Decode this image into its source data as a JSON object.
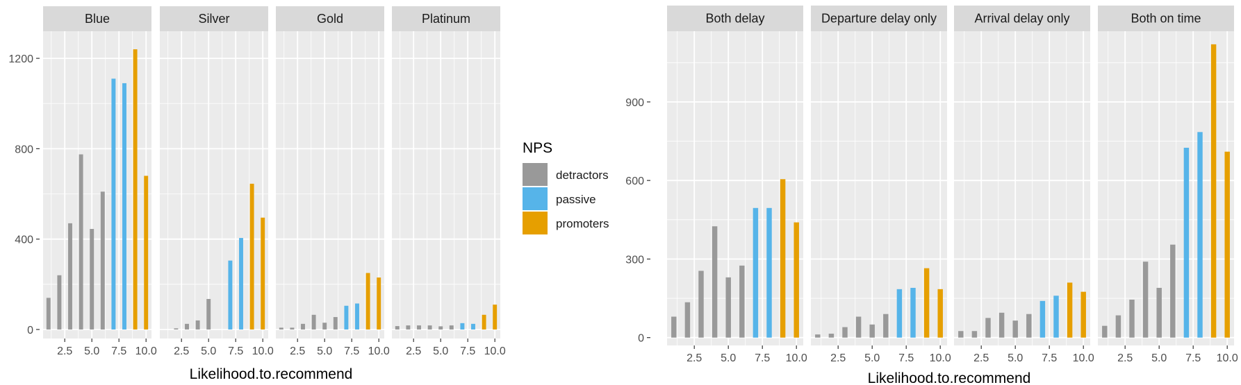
{
  "chart_data": [
    {
      "type": "bar",
      "facet_by": "Airline.Status",
      "xlabel": "Likelihood.to.recommend",
      "ylabel": "",
      "xlim": [
        0.5,
        10.5
      ],
      "x_ticks": [
        2.5,
        5.0,
        7.5,
        10.0
      ],
      "x_tick_labels": [
        "2.5",
        "5.0",
        "7.5",
        "10.0"
      ],
      "ylim": [
        -40,
        1320
      ],
      "y_ticks": [
        0,
        400,
        800,
        1200
      ],
      "y_tick_labels": [
        "0",
        "400",
        "800",
        "1200"
      ],
      "x": [
        1,
        2,
        3,
        4,
        5,
        6,
        7,
        8,
        9,
        10
      ],
      "fill_group": [
        "detractors",
        "detractors",
        "detractors",
        "detractors",
        "detractors",
        "detractors",
        "passive",
        "passive",
        "promoters",
        "promoters"
      ],
      "panels": [
        {
          "label": "Blue",
          "values": [
            140,
            240,
            470,
            775,
            445,
            610,
            1110,
            1090,
            1240,
            680
          ]
        },
        {
          "label": "Silver",
          "values": [
            0,
            5,
            25,
            40,
            135,
            0,
            305,
            405,
            645,
            495
          ]
        },
        {
          "label": "Gold",
          "values": [
            8,
            8,
            25,
            65,
            30,
            55,
            105,
            115,
            250,
            230
          ]
        },
        {
          "label": "Platinum",
          "values": [
            15,
            18,
            18,
            18,
            14,
            18,
            28,
            25,
            65,
            110
          ]
        }
      ]
    },
    {
      "type": "bar",
      "facet_by": "delay",
      "xlabel": "Likelihood.to.recommend",
      "ylabel": "",
      "xlim": [
        0.5,
        10.5
      ],
      "x_ticks": [
        2.5,
        5.0,
        7.5,
        10.0
      ],
      "x_tick_labels": [
        "2.5",
        "5.0",
        "7.5",
        "10.0"
      ],
      "ylim": [
        -30,
        1170
      ],
      "y_ticks": [
        0,
        300,
        600,
        900
      ],
      "y_tick_labels": [
        "0",
        "300",
        "600",
        "900"
      ],
      "x": [
        1,
        2,
        3,
        4,
        5,
        6,
        7,
        8,
        9,
        10
      ],
      "fill_group": [
        "detractors",
        "detractors",
        "detractors",
        "detractors",
        "detractors",
        "detractors",
        "passive",
        "passive",
        "promoters",
        "promoters"
      ],
      "panels": [
        {
          "label": "Both delay",
          "values": [
            80,
            135,
            255,
            425,
            230,
            275,
            495,
            495,
            605,
            440
          ]
        },
        {
          "label": "Departure delay only",
          "values": [
            12,
            15,
            40,
            80,
            50,
            90,
            185,
            190,
            265,
            185
          ]
        },
        {
          "label": "Arrival delay only",
          "values": [
            25,
            25,
            75,
            95,
            65,
            90,
            140,
            160,
            210,
            175
          ]
        },
        {
          "label": "Both on time",
          "values": [
            45,
            85,
            145,
            290,
            190,
            355,
            725,
            785,
            1120,
            710
          ]
        }
      ]
    }
  ],
  "legend": {
    "title": "NPS",
    "entries": [
      {
        "key": "detractors",
        "label": "detractors",
        "color": "#999999"
      },
      {
        "key": "passive",
        "label": "passive",
        "color": "#56B4E9"
      },
      {
        "key": "promoters",
        "label": "promoters",
        "color": "#E69F00"
      }
    ]
  },
  "colors": {
    "panel_background": "#EBEBEB",
    "strip_background": "#D9D9D9",
    "grid_major": "#FFFFFF",
    "tick": "#333333"
  }
}
